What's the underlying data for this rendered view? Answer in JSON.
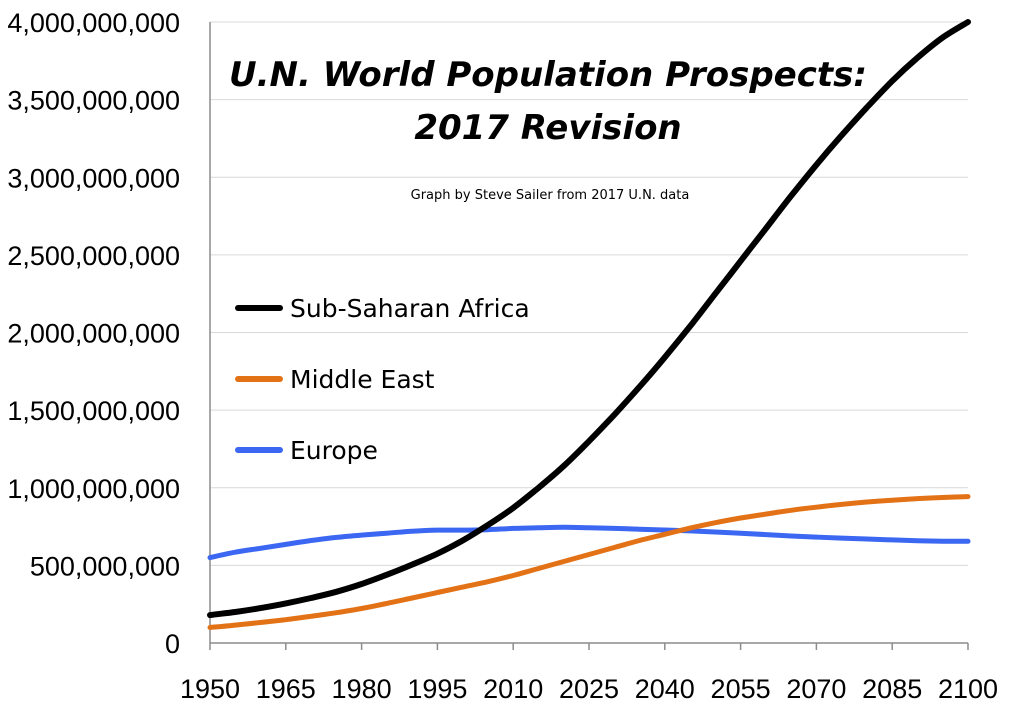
{
  "chart_data": {
    "type": "line",
    "title_line1": "U.N. World Population Prospects:",
    "title_line2": "2017 Revision",
    "subtitle": "Graph by Steve Sailer from 2017 U.N. data",
    "xlabel": "",
    "ylabel": "",
    "xlim": [
      1950,
      2100
    ],
    "ylim": [
      0,
      4000000000
    ],
    "x_ticks": [
      1950,
      1965,
      1980,
      1995,
      2010,
      2025,
      2040,
      2055,
      2070,
      2085,
      2100
    ],
    "y_ticks": [
      0,
      500000000,
      1000000000,
      1500000000,
      2000000000,
      2500000000,
      3000000000,
      3500000000,
      4000000000
    ],
    "y_tick_labels": [
      "0",
      "500,000,000",
      "1,000,000,000",
      "1,500,000,000",
      "2,000,000,000",
      "2,500,000,000",
      "3,000,000,000",
      "3,500,000,000",
      "4,000,000,000"
    ],
    "grid": true,
    "legend": "left",
    "x": [
      1950,
      1955,
      1960,
      1965,
      1970,
      1975,
      1980,
      1985,
      1990,
      1995,
      2000,
      2005,
      2010,
      2015,
      2020,
      2025,
      2030,
      2035,
      2040,
      2045,
      2050,
      2055,
      2060,
      2065,
      2070,
      2075,
      2080,
      2085,
      2090,
      2095,
      2100
    ],
    "series": [
      {
        "name": "Sub-Saharan Africa",
        "color": "#000000",
        "values": [
          180000000,
          200000000,
          225000000,
          255000000,
          290000000,
          330000000,
          380000000,
          440000000,
          505000000,
          575000000,
          660000000,
          760000000,
          870000000,
          1000000000,
          1140000000,
          1300000000,
          1470000000,
          1650000000,
          1840000000,
          2040000000,
          2250000000,
          2460000000,
          2670000000,
          2880000000,
          3080000000,
          3270000000,
          3450000000,
          3620000000,
          3770000000,
          3900000000,
          4020000000
        ]
      },
      {
        "name": "Middle East",
        "color": "#e37217",
        "values": [
          100000000,
          115000000,
          132000000,
          150000000,
          172000000,
          195000000,
          222000000,
          255000000,
          290000000,
          325000000,
          360000000,
          395000000,
          435000000,
          480000000,
          525000000,
          570000000,
          615000000,
          660000000,
          700000000,
          740000000,
          775000000,
          805000000,
          830000000,
          855000000,
          875000000,
          893000000,
          908000000,
          920000000,
          930000000,
          937000000,
          943000000
        ]
      },
      {
        "name": "Europe",
        "color": "#3b67f2",
        "values": [
          550000000,
          585000000,
          610000000,
          635000000,
          660000000,
          680000000,
          695000000,
          707000000,
          720000000,
          727000000,
          727000000,
          730000000,
          738000000,
          742000000,
          745000000,
          742000000,
          738000000,
          733000000,
          728000000,
          722000000,
          715000000,
          707000000,
          698000000,
          689000000,
          682000000,
          676000000,
          670000000,
          664000000,
          659000000,
          656000000,
          655000000
        ]
      }
    ]
  }
}
